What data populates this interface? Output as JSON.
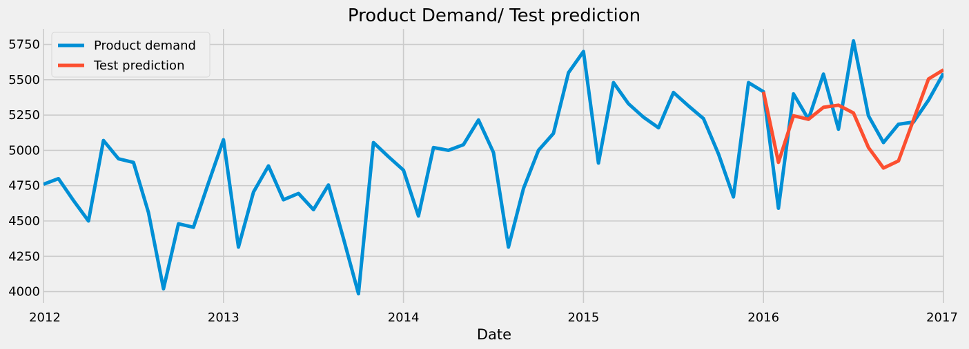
{
  "chart_data": {
    "type": "line",
    "title": "Product Demand/ Test prediction",
    "xlabel": "Date",
    "ylabel": "",
    "x_range": [
      "2012-01",
      "2017-01"
    ],
    "ylim": [
      3920,
      5860
    ],
    "x_ticks": [
      "2012",
      "2013",
      "2014",
      "2015",
      "2016",
      "2017"
    ],
    "y_ticks": [
      4000,
      4250,
      4500,
      4750,
      5000,
      5250,
      5500,
      5750
    ],
    "grid": true,
    "legend_position": "top-left",
    "series": [
      {
        "name": "Product demand",
        "color": "#008fd5",
        "points": [
          [
            "2012-01",
            4760
          ],
          [
            "2012-02",
            4800
          ],
          [
            "2012-03",
            4645
          ],
          [
            "2012-04",
            4500
          ],
          [
            "2012-05",
            5070
          ],
          [
            "2012-06",
            4940
          ],
          [
            "2012-07",
            4915
          ],
          [
            "2012-08",
            4560
          ],
          [
            "2012-09",
            4020
          ],
          [
            "2012-10",
            4480
          ],
          [
            "2012-11",
            4455
          ],
          [
            "2012-12",
            4770
          ],
          [
            "2013-01",
            5075
          ],
          [
            "2013-02",
            4315
          ],
          [
            "2013-03",
            4705
          ],
          [
            "2013-04",
            4890
          ],
          [
            "2013-05",
            4650
          ],
          [
            "2013-06",
            4695
          ],
          [
            "2013-07",
            4580
          ],
          [
            "2013-08",
            4755
          ],
          [
            "2013-09",
            4375
          ],
          [
            "2013-10",
            3985
          ],
          [
            "2013-11",
            5055
          ],
          [
            "2013-12",
            4955
          ],
          [
            "2014-01",
            4860
          ],
          [
            "2014-02",
            4535
          ],
          [
            "2014-03",
            5020
          ],
          [
            "2014-04",
            5000
          ],
          [
            "2014-05",
            5040
          ],
          [
            "2014-06",
            5215
          ],
          [
            "2014-07",
            4985
          ],
          [
            "2014-08",
            4315
          ],
          [
            "2014-09",
            4730
          ],
          [
            "2014-10",
            5000
          ],
          [
            "2014-11",
            5120
          ],
          [
            "2014-12",
            5550
          ],
          [
            "2015-01",
            5700
          ],
          [
            "2015-02",
            4910
          ],
          [
            "2015-03",
            5480
          ],
          [
            "2015-04",
            5330
          ],
          [
            "2015-05",
            5235
          ],
          [
            "2015-06",
            5160
          ],
          [
            "2015-07",
            5410
          ],
          [
            "2015-08",
            5315
          ],
          [
            "2015-09",
            5225
          ],
          [
            "2015-10",
            4975
          ],
          [
            "2015-11",
            4670
          ],
          [
            "2015-12",
            5480
          ],
          [
            "2016-01",
            5415
          ],
          [
            "2016-02",
            4590
          ],
          [
            "2016-03",
            5400
          ],
          [
            "2016-04",
            5220
          ],
          [
            "2016-05",
            5540
          ],
          [
            "2016-06",
            5150
          ],
          [
            "2016-07",
            5775
          ],
          [
            "2016-08",
            5245
          ],
          [
            "2016-09",
            5055
          ],
          [
            "2016-10",
            5185
          ],
          [
            "2016-11",
            5200
          ],
          [
            "2016-12",
            5355
          ],
          [
            "2017-01",
            5545
          ]
        ]
      },
      {
        "name": "Test prediction",
        "color": "#fc4f30",
        "points": [
          [
            "2016-01",
            5415
          ],
          [
            "2016-02",
            4915
          ],
          [
            "2016-03",
            5245
          ],
          [
            "2016-04",
            5220
          ],
          [
            "2016-05",
            5305
          ],
          [
            "2016-06",
            5320
          ],
          [
            "2016-07",
            5265
          ],
          [
            "2016-08",
            5020
          ],
          [
            "2016-09",
            4875
          ],
          [
            "2016-10",
            4925
          ],
          [
            "2016-11",
            5215
          ],
          [
            "2016-12",
            5505
          ],
          [
            "2017-01",
            5570
          ]
        ]
      }
    ]
  }
}
